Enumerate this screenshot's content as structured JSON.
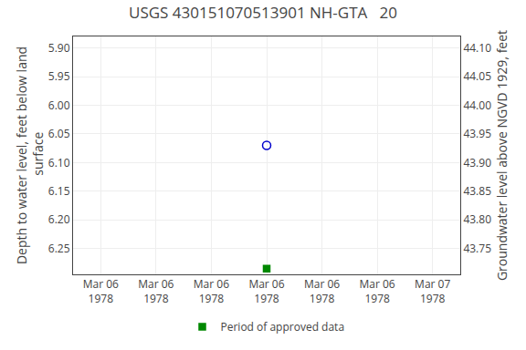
{
  "chart_data": {
    "type": "scatter",
    "title": "USGS 430151070513901 NH-GTA   20",
    "ylabel": "Depth to water level, feet below land\n surface",
    "y2label": "Groundwater level above NGVD 1929, feet",
    "categories": [
      "Mar 06\n1978",
      "Mar 06\n1978",
      "Mar 06\n1978",
      "Mar 06\n1978",
      "Mar 06\n1978",
      "Mar 06\n1978",
      "Mar 07\n1978"
    ],
    "ylim": [
      6.295,
      5.88
    ],
    "yticks": [
      {
        "value": 5.9,
        "label": "5.90"
      },
      5.95,
      {
        "value": 6.0,
        "label": "6.00"
      },
      6.05,
      {
        "value": 6.1,
        "label": "6.10"
      },
      6.15,
      {
        "value": 6.2,
        "label": "6.20"
      },
      6.25
    ],
    "y2lim": [
      43.705,
      44.12
    ],
    "y2ticks": [
      {
        "value": 44.1,
        "label": "44.10"
      },
      44.05,
      {
        "value": 44.0,
        "label": "44.00"
      },
      43.95,
      {
        "value": 43.9,
        "label": "43.90"
      },
      43.85,
      {
        "value": 43.8,
        "label": "43.80"
      },
      43.75
    ],
    "grid": true,
    "legend": "bottom",
    "series": [
      {
        "color": "#0000cc",
        "marker": "circle-open",
        "values": [
          null,
          null,
          null,
          6.07,
          null,
          null,
          null
        ]
      },
      {
        "name": "Period of approved data",
        "color": "#008800",
        "marker": "square",
        "values": [
          null,
          null,
          null,
          6.285,
          null,
          null,
          null
        ]
      }
    ]
  }
}
